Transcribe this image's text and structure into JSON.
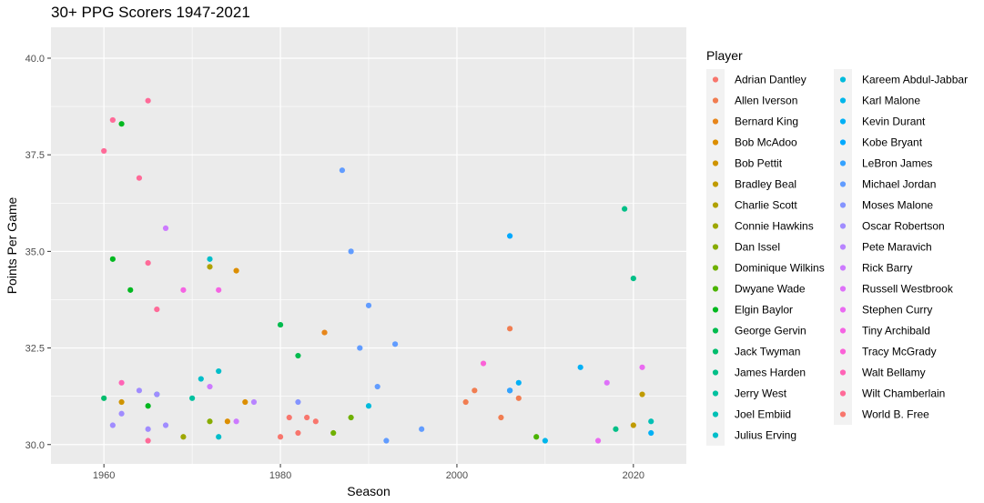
{
  "chart_data": {
    "type": "scatter",
    "title": "30+ PPG Scorers 1947-2021",
    "xlabel": "Season",
    "ylabel": "Points Per Game",
    "xlim": [
      1954,
      2026
    ],
    "ylim": [
      29.5,
      40.8
    ],
    "x_ticks": [
      1960,
      1980,
      2000,
      2020
    ],
    "y_ticks": [
      "30.0",
      "32.5",
      "35.0",
      "37.5",
      "40.0"
    ],
    "grid": true,
    "legend": {
      "title": "Player",
      "position": "right"
    },
    "series": [
      {
        "name": "Adrian Dantley",
        "color": "#F8766D",
        "points": [
          [
            1981,
            30.7
          ],
          [
            1982,
            30.3
          ],
          [
            1983,
            30.7
          ],
          [
            1984,
            30.6
          ]
        ]
      },
      {
        "name": "Allen Iverson",
        "color": "#F17D51",
        "points": [
          [
            2001,
            31.1
          ],
          [
            2002,
            31.4
          ],
          [
            2005,
            30.7
          ],
          [
            2006,
            33.0
          ],
          [
            2007,
            31.2
          ]
        ]
      },
      {
        "name": "Bernard King",
        "color": "#E7861B",
        "points": [
          [
            1985,
            32.9
          ]
        ]
      },
      {
        "name": "Bob McAdoo",
        "color": "#DC8E00",
        "points": [
          [
            1974,
            30.6
          ],
          [
            1975,
            34.5
          ],
          [
            1976,
            31.1
          ]
        ]
      },
      {
        "name": "Bob Pettit",
        "color": "#CF9400",
        "points": [
          [
            1962,
            31.1
          ]
        ]
      },
      {
        "name": "Bradley Beal",
        "color": "#C09B00",
        "points": [
          [
            2020,
            30.5
          ],
          [
            2021,
            31.3
          ]
        ]
      },
      {
        "name": "Charlie Scott",
        "color": "#B0A100",
        "points": [
          [
            1972,
            34.6
          ]
        ]
      },
      {
        "name": "Connie Hawkins",
        "color": "#9EA700",
        "points": [
          [
            1969,
            30.2
          ]
        ]
      },
      {
        "name": "Dan Issel",
        "color": "#88AC00",
        "points": [
          [
            1972,
            30.6
          ]
        ]
      },
      {
        "name": "Dominique Wilkins",
        "color": "#6FB000",
        "points": [
          [
            1986,
            30.3
          ],
          [
            1988,
            30.7
          ]
        ]
      },
      {
        "name": "Dwyane Wade",
        "color": "#4BB400",
        "points": [
          [
            2009,
            30.2
          ]
        ]
      },
      {
        "name": "Elgin Baylor",
        "color": "#00B81F",
        "points": [
          [
            1961,
            34.8
          ],
          [
            1962,
            38.3
          ],
          [
            1963,
            34.0
          ],
          [
            1965,
            31.0
          ]
        ]
      },
      {
        "name": "George Gervin",
        "color": "#00BB4E",
        "points": [
          [
            1980,
            33.1
          ],
          [
            1982,
            32.3
          ]
        ]
      },
      {
        "name": "Jack Twyman",
        "color": "#00BD6D",
        "points": [
          [
            1960,
            31.2
          ]
        ]
      },
      {
        "name": "James Harden",
        "color": "#00BF87",
        "points": [
          [
            2018,
            30.4
          ],
          [
            2019,
            36.1
          ],
          [
            2020,
            34.3
          ]
        ]
      },
      {
        "name": "Jerry West",
        "color": "#00C19F",
        "points": [
          [
            1966,
            31.3
          ],
          [
            1970,
            31.2
          ]
        ]
      },
      {
        "name": "Joel Embiid",
        "color": "#00C0B5",
        "points": [
          [
            2022,
            30.6
          ]
        ]
      },
      {
        "name": "Julius Erving",
        "color": "#00BECA",
        "points": [
          [
            1972,
            34.8
          ],
          [
            1971,
            31.7
          ],
          [
            1973,
            31.9
          ],
          [
            1973,
            30.2
          ]
        ]
      },
      {
        "name": "Kareem Abdul-Jabbar",
        "color": "#00BBDC",
        "points": [
          [
            1990,
            31.0
          ]
        ]
      },
      {
        "name": "Karl Malone",
        "color": "#00B6EB",
        "points": [
          [
            2010,
            30.1
          ]
        ]
      },
      {
        "name": "Kevin Durant",
        "color": "#00B0F6",
        "points": [
          [
            2007,
            31.6
          ],
          [
            2014,
            32.0
          ],
          [
            2022,
            30.3
          ]
        ]
      },
      {
        "name": "Kobe Bryant",
        "color": "#00A9FF",
        "points": [
          [
            2006,
            35.4
          ],
          [
            2006,
            31.4
          ]
        ]
      },
      {
        "name": "LeBron James",
        "color": "#35A2FF",
        "points": [
          [
            2006,
            31.4
          ]
        ]
      },
      {
        "name": "Michael Jordan",
        "color": "#619CFF",
        "points": [
          [
            1987,
            37.1
          ],
          [
            1988,
            35.0
          ],
          [
            1989,
            32.5
          ],
          [
            1990,
            33.6
          ],
          [
            1991,
            31.5
          ],
          [
            1992,
            30.1
          ],
          [
            1993,
            32.6
          ],
          [
            1996,
            30.4
          ]
        ]
      },
      {
        "name": "Moses Malone",
        "color": "#8494FF",
        "points": [
          [
            1982,
            31.1
          ]
        ]
      },
      {
        "name": "Oscar Robertson",
        "color": "#A08CFF",
        "points": [
          [
            1961,
            30.5
          ],
          [
            1962,
            30.8
          ],
          [
            1964,
            31.4
          ],
          [
            1965,
            30.4
          ],
          [
            1966,
            31.3
          ],
          [
            1967,
            30.5
          ]
        ]
      },
      {
        "name": "Pete Maravich",
        "color": "#B884FF",
        "points": [
          [
            1977,
            31.1
          ]
        ]
      },
      {
        "name": "Rick Barry",
        "color": "#CC7AFE",
        "points": [
          [
            1967,
            35.6
          ],
          [
            1972,
            31.5
          ],
          [
            1975,
            30.6
          ]
        ]
      },
      {
        "name": "Russell Westbrook",
        "color": "#DE71F9",
        "points": [
          [
            2017,
            31.6
          ]
        ]
      },
      {
        "name": "Stephen Curry",
        "color": "#EA6AF1",
        "points": [
          [
            2016,
            30.1
          ],
          [
            2021,
            32.0
          ]
        ]
      },
      {
        "name": "Tiny Archibald",
        "color": "#F564E3",
        "points": [
          [
            1969,
            34.0
          ],
          [
            1973,
            34.0
          ]
        ]
      },
      {
        "name": "Tracy McGrady",
        "color": "#FB61D7",
        "points": [
          [
            2003,
            32.1
          ]
        ]
      },
      {
        "name": "Walt Bellamy",
        "color": "#FF63B6",
        "points": [
          [
            1962,
            31.6
          ]
        ]
      },
      {
        "name": "Wilt Chamberlain",
        "color": "#FF6A98",
        "points": [
          [
            1960,
            37.6
          ],
          [
            1961,
            38.4
          ],
          [
            1964,
            36.9
          ],
          [
            1965,
            38.9
          ],
          [
            1965,
            34.7
          ],
          [
            1966,
            33.5
          ],
          [
            1965,
            30.1
          ]
        ]
      },
      {
        "name": "World B. Free",
        "color": "#F8766D",
        "points": [
          [
            1980,
            30.2
          ]
        ]
      }
    ]
  }
}
